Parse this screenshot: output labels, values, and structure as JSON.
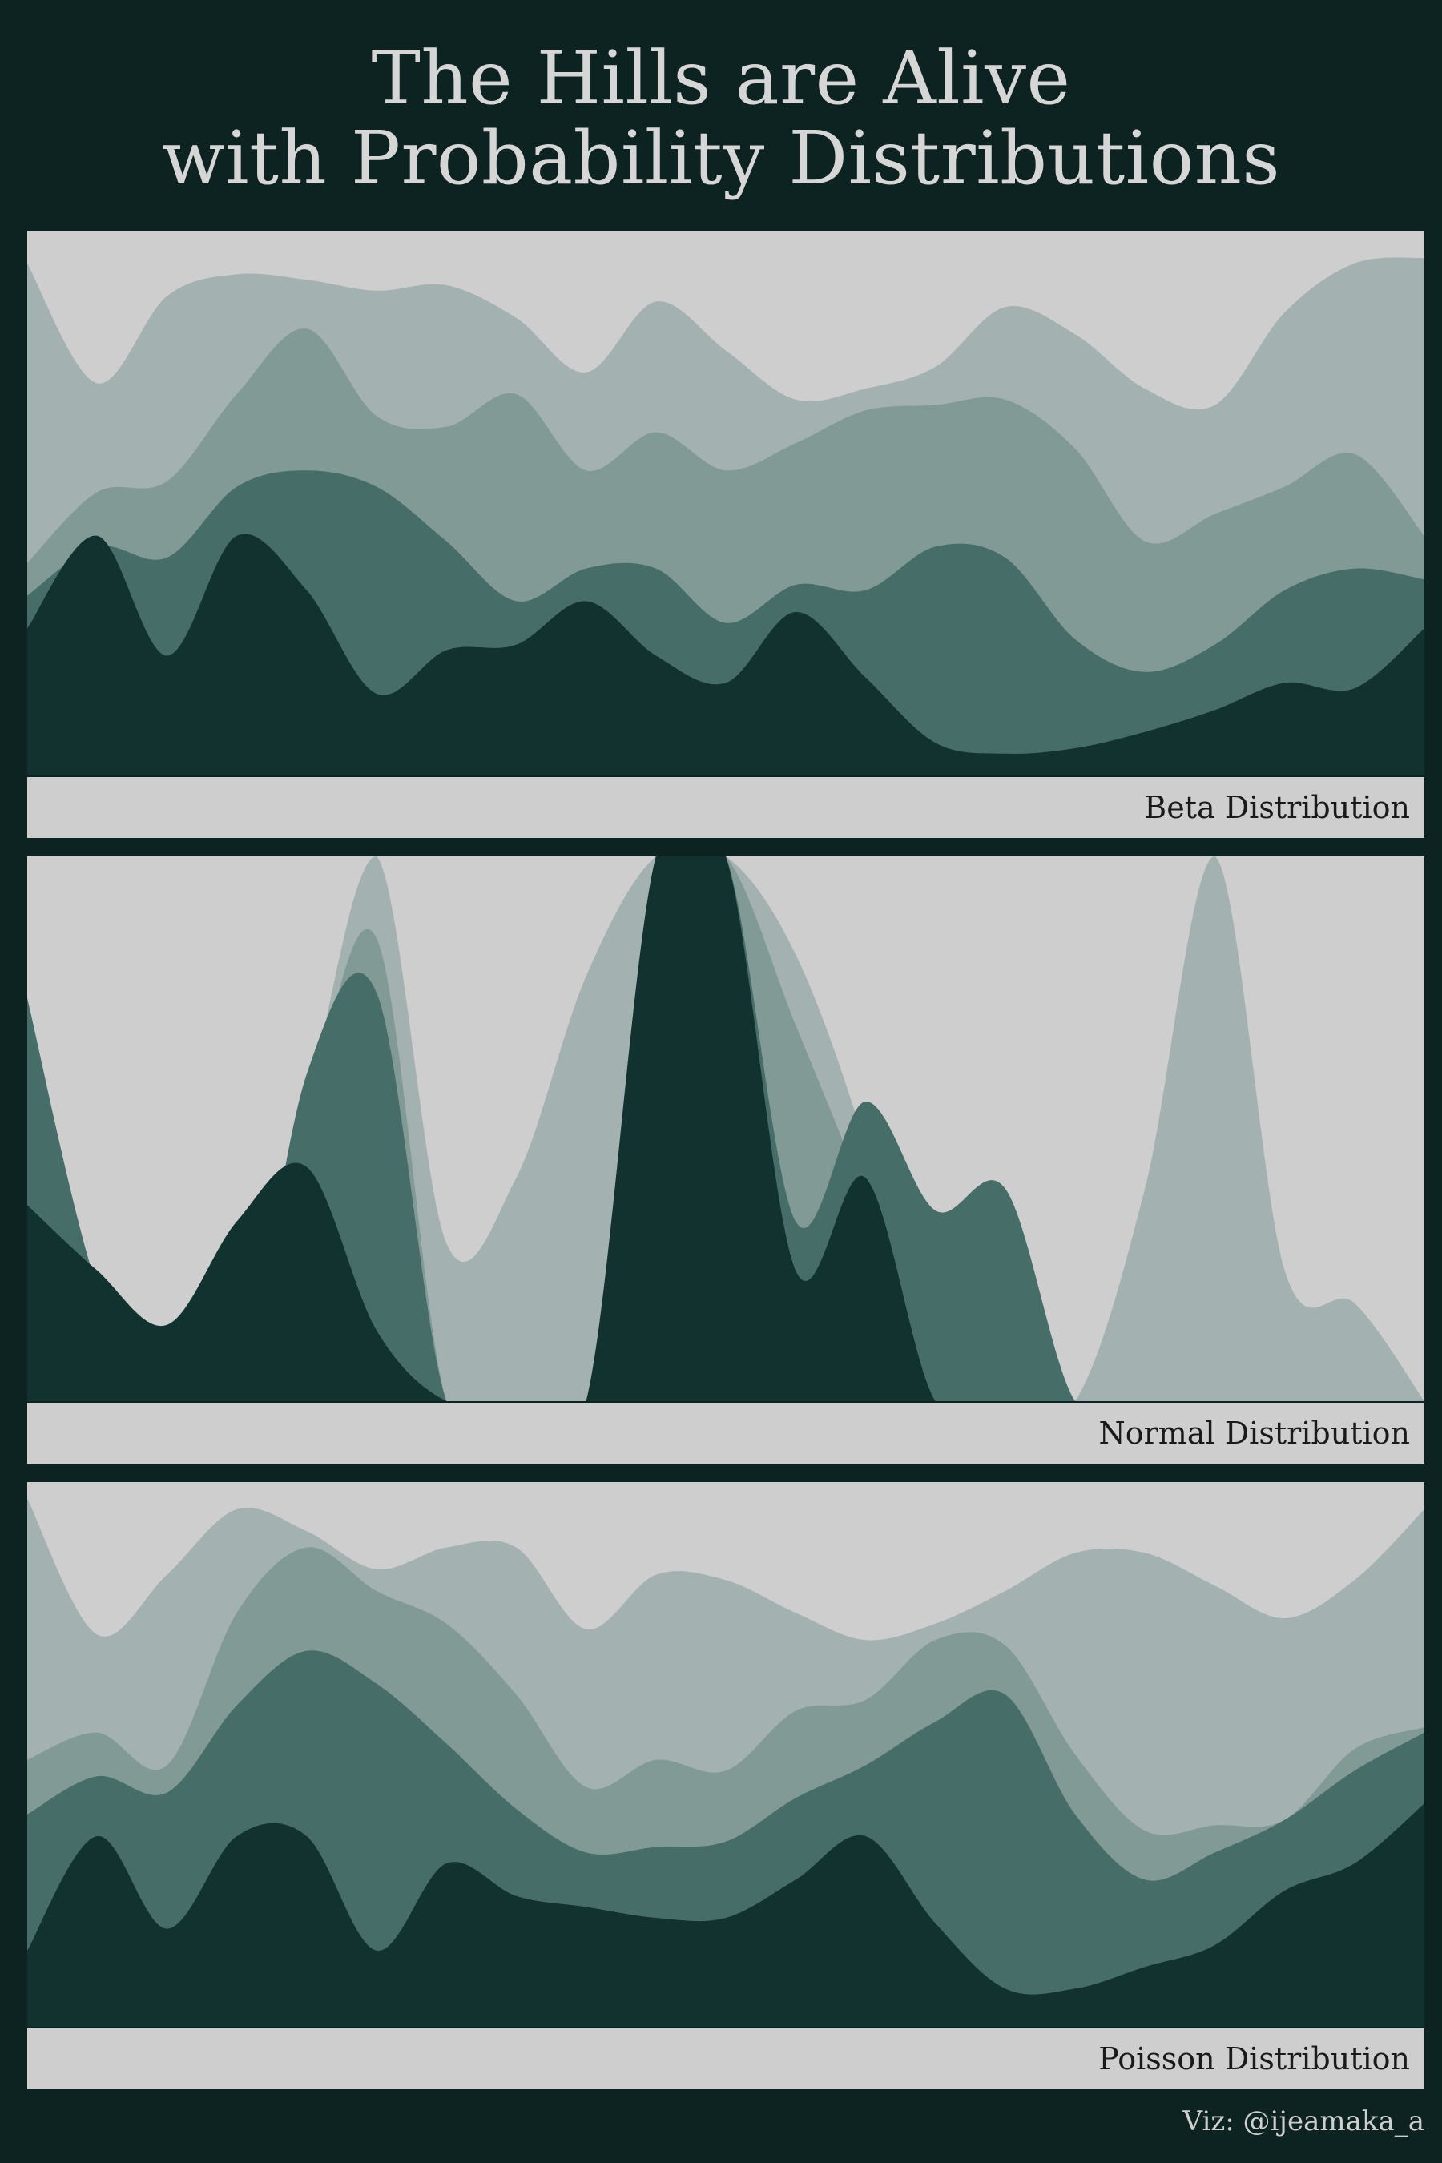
{
  "title_line1": "The Hills are Alive",
  "title_line2": "with Probability Distributions",
  "credit": "Viz: @ijeamaka_a",
  "colors": {
    "background": "#0d2321",
    "panel": "#cecece",
    "layers": [
      "#a3b1b0",
      "#819a96",
      "#476d69",
      "#123230"
    ]
  },
  "chart_data": [
    {
      "type": "area",
      "title": "Beta Distribution",
      "layer_order": "back-to-front",
      "ylim": [
        0,
        1
      ],
      "x": [
        0,
        0.05,
        0.1,
        0.15,
        0.2,
        0.25,
        0.3,
        0.35,
        0.4,
        0.45,
        0.5,
        0.55,
        0.6,
        0.65,
        0.7,
        0.75,
        0.8,
        0.85,
        0.9,
        0.95,
        1
      ],
      "series": [
        {
          "values": [
            0.94,
            0.72,
            0.88,
            0.92,
            0.91,
            0.89,
            0.9,
            0.84,
            0.74,
            0.87,
            0.78,
            0.69,
            0.71,
            0.75,
            0.86,
            0.81,
            0.71,
            0.68,
            0.85,
            0.94,
            0.95
          ]
        },
        {
          "values": [
            0.39,
            0.52,
            0.54,
            0.7,
            0.82,
            0.66,
            0.64,
            0.7,
            0.56,
            0.63,
            0.56,
            0.61,
            0.67,
            0.68,
            0.69,
            0.6,
            0.43,
            0.48,
            0.53,
            0.59,
            0.44
          ]
        },
        {
          "values": [
            0.33,
            0.42,
            0.4,
            0.53,
            0.56,
            0.53,
            0.43,
            0.32,
            0.38,
            0.38,
            0.28,
            0.35,
            0.34,
            0.42,
            0.4,
            0.25,
            0.19,
            0.24,
            0.34,
            0.38,
            0.36
          ]
        },
        {
          "values": [
            0.27,
            0.44,
            0.22,
            0.44,
            0.34,
            0.15,
            0.23,
            0.24,
            0.32,
            0.22,
            0.17,
            0.3,
            0.18,
            0.06,
            0.04,
            0.05,
            0.08,
            0.12,
            0.17,
            0.16,
            0.27
          ]
        }
      ]
    },
    {
      "type": "area",
      "title": "Normal Distribution",
      "layer_order": "back-to-front",
      "ylim": [
        0,
        1
      ],
      "x": [
        0,
        0.05,
        0.1,
        0.15,
        0.2,
        0.25,
        0.3,
        0.35,
        0.4,
        0.45,
        0.5,
        0.55,
        0.6,
        0.65,
        0.7,
        0.75,
        0.8,
        0.85,
        0.9,
        0.95,
        1
      ],
      "series": [
        {
          "values": [
            0.18,
            0.0,
            0.0,
            0.0,
            0.54,
            1.0,
            0.29,
            0.41,
            0.78,
            1.0,
            1.0,
            0.82,
            0.47,
            0.0,
            0.0,
            0.0,
            0.39,
            1.0,
            0.24,
            0.18,
            0.0
          ]
        },
        {
          "values": [
            0.55,
            0.0,
            0.0,
            0.0,
            0.52,
            0.85,
            0.0,
            0.0,
            0.0,
            1.0,
            1.0,
            0.69,
            0.37,
            0.0,
            0.0,
            0.0,
            0.0,
            0.0,
            0.0,
            0.0,
            0.0
          ]
        },
        {
          "values": [
            0.74,
            0.21,
            0.0,
            0.0,
            0.6,
            0.75,
            0.0,
            0.0,
            0.0,
            1.0,
            1.0,
            0.33,
            0.55,
            0.35,
            0.39,
            0.0,
            0.0,
            0.0,
            0.0,
            0.0,
            0.0
          ]
        },
        {
          "values": [
            0.36,
            0.24,
            0.14,
            0.33,
            0.43,
            0.13,
            0.0,
            0.0,
            0.0,
            1.0,
            1.0,
            0.24,
            0.41,
            0.0,
            0.0,
            0.0,
            0.0,
            0.0,
            0.0,
            0.0,
            0.0
          ]
        }
      ]
    },
    {
      "type": "area",
      "title": "Poisson Distribution",
      "layer_order": "back-to-front",
      "ylim": [
        0,
        1
      ],
      "x": [
        0,
        0.05,
        0.1,
        0.15,
        0.2,
        0.25,
        0.3,
        0.35,
        0.4,
        0.45,
        0.5,
        0.55,
        0.6,
        0.65,
        0.7,
        0.75,
        0.8,
        0.85,
        0.9,
        0.95,
        1
      ],
      "series": [
        {
          "values": [
            0.97,
            0.72,
            0.83,
            0.95,
            0.91,
            0.84,
            0.88,
            0.88,
            0.73,
            0.83,
            0.82,
            0.76,
            0.71,
            0.74,
            0.8,
            0.87,
            0.87,
            0.81,
            0.75,
            0.82,
            0.95
          ]
        },
        {
          "values": [
            0.49,
            0.54,
            0.48,
            0.76,
            0.88,
            0.8,
            0.74,
            0.61,
            0.44,
            0.49,
            0.47,
            0.58,
            0.6,
            0.71,
            0.7,
            0.5,
            0.36,
            0.37,
            0.38,
            0.51,
            0.55
          ]
        },
        {
          "values": [
            0.39,
            0.46,
            0.43,
            0.59,
            0.69,
            0.63,
            0.52,
            0.4,
            0.32,
            0.33,
            0.34,
            0.42,
            0.48,
            0.56,
            0.61,
            0.39,
            0.27,
            0.32,
            0.38,
            0.47,
            0.54
          ]
        },
        {
          "values": [
            0.14,
            0.35,
            0.18,
            0.35,
            0.35,
            0.14,
            0.3,
            0.24,
            0.22,
            0.2,
            0.2,
            0.27,
            0.35,
            0.19,
            0.07,
            0.07,
            0.11,
            0.15,
            0.25,
            0.3,
            0.41
          ]
        }
      ]
    }
  ]
}
